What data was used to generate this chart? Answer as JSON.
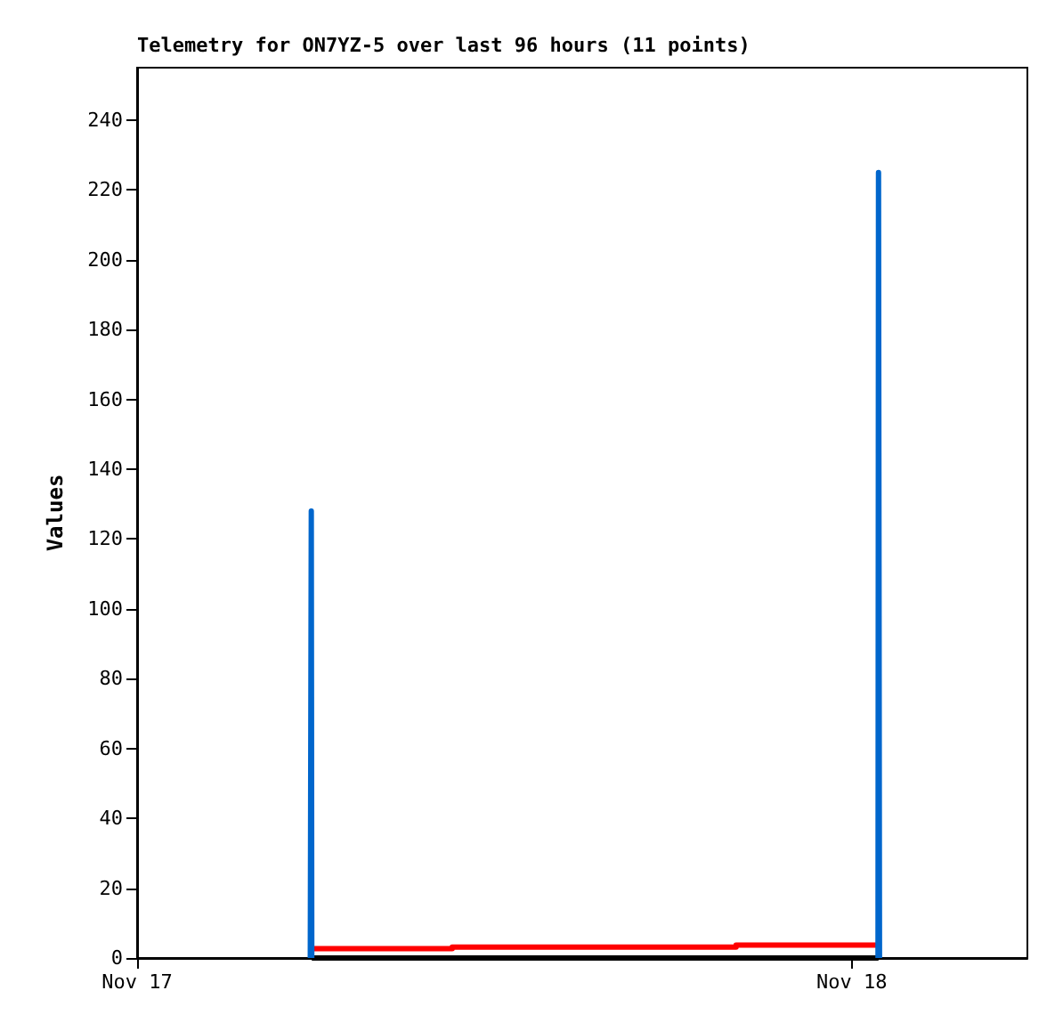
{
  "chart_data": {
    "type": "step",
    "title": "Telemetry for ON7YZ-5 over last 96 hours (11 points)",
    "ylabel": "Values",
    "xlim": [
      "--11-17",
      "--11-18T05:54"
    ],
    "xticks": [
      {
        "value": "--11-17",
        "label": "Nov 17"
      },
      {
        "value": "--11-18",
        "label": "Nov 18"
      }
    ],
    "ylim": [
      0,
      255
    ],
    "yticks": [
      0,
      20,
      40,
      60,
      80,
      100,
      120,
      140,
      160,
      180,
      200,
      220,
      240
    ],
    "grid": false,
    "marker": "none",
    "line_style": "solid",
    "series": [
      {
        "color": "#000000",
        "x": [
          "--11-17T05:52",
          "--11-18T00:54"
        ],
        "values": [
          0,
          0
        ]
      },
      {
        "color": "#ff0000",
        "x": [
          "--11-17T05:56",
          "--11-17T10:35",
          "--11-17T20:07",
          "--11-18T00:55"
        ],
        "values": [
          2.7,
          3.1,
          3.7,
          3.7
        ]
      },
      {
        "color": "#0066cc",
        "x": [
          "--11-17T05:49",
          "--11-17T05:50",
          "--11-17T05:51",
          "--11-17T05:52",
          "--11-17T05:53",
          "--11-18T00:53",
          "--11-18T00:54",
          "--11-18T00:55",
          "--11-18T00:56"
        ],
        "values": [
          0,
          64,
          128,
          0,
          null,
          0,
          225,
          113,
          0
        ]
      }
    ]
  }
}
